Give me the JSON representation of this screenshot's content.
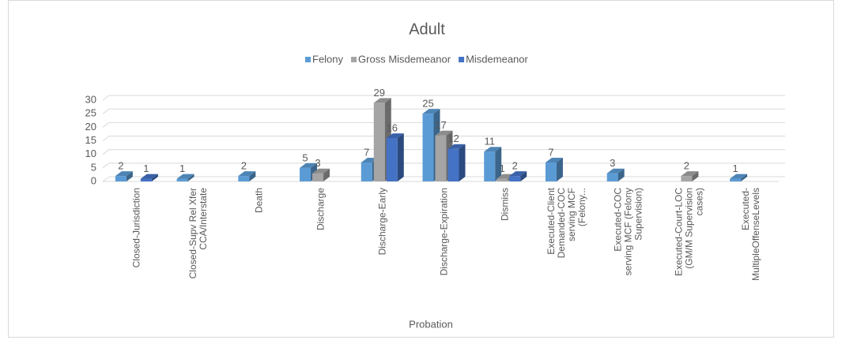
{
  "chart_data": {
    "type": "bar3d",
    "title": "Adult",
    "x_label": "Probation",
    "categories": [
      "Closed-Jurisdiction",
      "Closed-Supv Rel Xfer CCA/Interstate",
      "Death",
      "Discharge",
      "Discharge-Early",
      "Discharge-Expiration",
      "Dismiss",
      "Executed-Client Demanded-COC serving MCF (Felony...",
      "Executed-COC serving MCF (Felony Supervision)",
      "Executed-Court-LOC (GM/M Supervision cases)",
      "Executed-MultipleOffenseLevels"
    ],
    "series": [
      {
        "name": "Felony",
        "color": "#5b9bd5",
        "values": [
          2,
          1,
          2,
          5,
          7,
          25,
          11,
          7,
          3,
          null,
          1
        ]
      },
      {
        "name": "Gross Misdemeanor",
        "color": "#a5a5a5",
        "values": [
          null,
          null,
          null,
          3,
          29,
          17,
          1,
          null,
          null,
          2,
          null
        ]
      },
      {
        "name": "Misdemeanor",
        "color": "#4472c4",
        "values": [
          1,
          null,
          null,
          null,
          16,
          12,
          2,
          null,
          null,
          null,
          null
        ]
      }
    ],
    "ylim": [
      0,
      30
    ],
    "yticks": [
      0,
      5,
      10,
      15,
      20,
      25,
      30
    ],
    "grid": true,
    "legend": "top"
  }
}
